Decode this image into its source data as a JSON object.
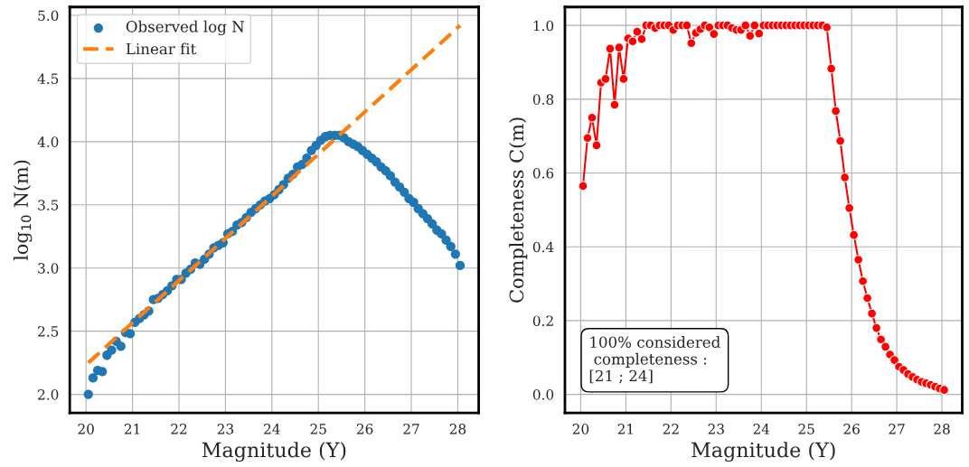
{
  "chart_data": [
    {
      "type": "scatter",
      "xlabel": "Magnitude (Y)",
      "ylabel": "log$_{10}$ N(m)",
      "xlim": [
        19.65,
        28.45
      ],
      "ylim": [
        1.854,
        5.066
      ],
      "xticks": [
        20,
        21,
        22,
        23,
        24,
        25,
        26,
        27,
        28
      ],
      "yticks": [
        {
          "value": 2.0,
          "label": "2.0"
        },
        {
          "value": 2.5,
          "label": "2.5"
        },
        {
          "value": 3.0,
          "label": "3.0"
        },
        {
          "value": 3.5,
          "label": "3.5"
        },
        {
          "value": 4.0,
          "label": "4.0"
        },
        {
          "value": 4.5,
          "label": "4.5"
        },
        {
          "value": 5.0,
          "label": "5.0"
        }
      ],
      "grid": true,
      "legend": "top left",
      "x": [
        20.05,
        20.15,
        20.25,
        20.35,
        20.45,
        20.55,
        20.65,
        20.75,
        20.85,
        20.95,
        21.05,
        21.15,
        21.25,
        21.35,
        21.45,
        21.55,
        21.65,
        21.75,
        21.85,
        21.95,
        22.05,
        22.15,
        22.25,
        22.35,
        22.45,
        22.55,
        22.65,
        22.75,
        22.85,
        22.95,
        23.05,
        23.15,
        23.25,
        23.35,
        23.45,
        23.55,
        23.65,
        23.75,
        23.85,
        23.95,
        24.05,
        24.15,
        24.25,
        24.35,
        24.45,
        24.55,
        24.65,
        24.75,
        24.85,
        24.95,
        25.05,
        25.15,
        25.25,
        25.35,
        25.45,
        25.55,
        25.65,
        25.75,
        25.85,
        25.95,
        26.05,
        26.15,
        26.25,
        26.35,
        26.45,
        26.55,
        26.65,
        26.75,
        26.85,
        26.95,
        27.05,
        27.15,
        27.25,
        27.35,
        27.45,
        27.55,
        27.65,
        27.75,
        27.85,
        27.95,
        28.05
      ],
      "series": [
        {
          "name": "Observed log N",
          "type": "scatter",
          "marker": "circle",
          "color": "#1f77b4",
          "values": [
            2.0,
            2.13,
            2.19,
            2.18,
            2.31,
            2.35,
            2.42,
            2.38,
            2.49,
            2.48,
            2.57,
            2.6,
            2.63,
            2.66,
            2.75,
            2.76,
            2.79,
            2.82,
            2.86,
            2.91,
            2.91,
            2.96,
            2.99,
            3.04,
            3.03,
            3.07,
            3.11,
            3.16,
            3.18,
            3.2,
            3.27,
            3.29,
            3.34,
            3.36,
            3.4,
            3.44,
            3.47,
            3.5,
            3.53,
            3.55,
            3.58,
            3.62,
            3.66,
            3.71,
            3.74,
            3.8,
            3.82,
            3.87,
            3.93,
            3.97,
            4.01,
            4.04,
            4.05,
            4.05,
            4.05,
            4.03,
            4.0,
            3.98,
            3.96,
            3.93,
            3.9,
            3.87,
            3.84,
            3.8,
            3.77,
            3.73,
            3.68,
            3.64,
            3.6,
            3.55,
            3.52,
            3.47,
            3.43,
            3.39,
            3.35,
            3.3,
            3.27,
            3.22,
            3.17,
            3.11,
            3.02
          ]
        },
        {
          "name": "Linear fit",
          "type": "line",
          "line_style": "dashed",
          "color": "#ff7f0e",
          "x": [
            20.05,
            28.05
          ],
          "values": [
            2.25,
            4.92
          ]
        }
      ]
    },
    {
      "type": "line",
      "xlabel": "Magnitude (Y)",
      "ylabel": "Completeness C(m)",
      "xlim": [
        19.65,
        28.45
      ],
      "ylim": [
        -0.05,
        1.05
      ],
      "xticks": [
        20,
        21,
        22,
        23,
        24,
        25,
        26,
        27,
        28
      ],
      "yticks": [
        {
          "value": 0.0,
          "label": "0.0"
        },
        {
          "value": 0.2,
          "label": "0.2"
        },
        {
          "value": 0.4,
          "label": "0.4"
        },
        {
          "value": 0.6,
          "label": "0.6"
        },
        {
          "value": 0.8,
          "label": "0.8"
        },
        {
          "value": 1.0,
          "label": "1.0"
        }
      ],
      "grid": true,
      "marker": "circle",
      "annotations": [
        "100% considered\n completeness :\n[21 ; 24]"
      ],
      "x": [
        20.05,
        20.15,
        20.25,
        20.35,
        20.45,
        20.55,
        20.65,
        20.75,
        20.85,
        20.95,
        21.05,
        21.15,
        21.25,
        21.35,
        21.45,
        21.55,
        21.65,
        21.75,
        21.85,
        21.95,
        22.05,
        22.15,
        22.25,
        22.35,
        22.45,
        22.55,
        22.65,
        22.75,
        22.85,
        22.95,
        23.05,
        23.15,
        23.25,
        23.35,
        23.45,
        23.55,
        23.65,
        23.75,
        23.85,
        23.95,
        24.05,
        24.15,
        24.25,
        24.35,
        24.45,
        24.55,
        24.65,
        24.75,
        24.85,
        24.95,
        25.05,
        25.15,
        25.25,
        25.35,
        25.45,
        25.55,
        25.65,
        25.75,
        25.85,
        25.95,
        26.05,
        26.15,
        26.25,
        26.35,
        26.45,
        26.55,
        26.65,
        26.75,
        26.85,
        26.95,
        27.05,
        27.15,
        27.25,
        27.35,
        27.45,
        27.55,
        27.65,
        27.75,
        27.85,
        27.95,
        28.05
      ],
      "series": [
        {
          "color": "#ff0000",
          "values": [
            0.565,
            0.695,
            0.75,
            0.675,
            0.845,
            0.855,
            0.937,
            0.785,
            0.94,
            0.855,
            0.965,
            0.957,
            0.983,
            0.963,
            1.0,
            1.0,
            0.993,
            1.0,
            1.0,
            1.0,
            0.988,
            1.0,
            1.0,
            1.0,
            0.952,
            0.98,
            0.99,
            1.0,
            0.995,
            0.977,
            1.0,
            1.0,
            1.0,
            0.993,
            0.988,
            0.988,
            1.0,
            0.972,
            1.0,
            0.978,
            1.0,
            1.0,
            1.0,
            1.0,
            1.0,
            1.0,
            1.0,
            1.0,
            1.0,
            1.0,
            1.0,
            1.0,
            1.0,
            1.0,
            0.995,
            0.883,
            0.768,
            0.687,
            0.588,
            0.505,
            0.432,
            0.365,
            0.307,
            0.261,
            0.219,
            0.18,
            0.149,
            0.129,
            0.108,
            0.093,
            0.075,
            0.066,
            0.055,
            0.047,
            0.04,
            0.034,
            0.03,
            0.026,
            0.021,
            0.016,
            0.012
          ]
        }
      ]
    }
  ]
}
